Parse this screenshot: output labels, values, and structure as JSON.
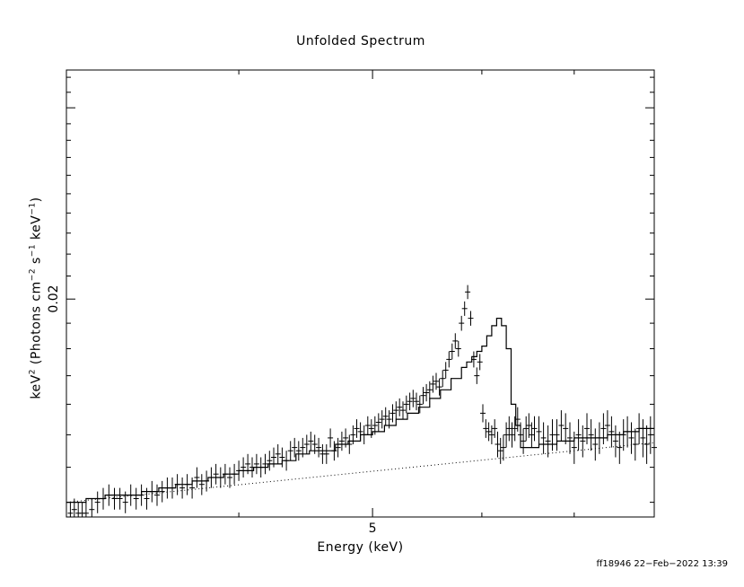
{
  "chart_data": {
    "type": "scatter",
    "title": "Unfolded Spectrum",
    "xlabel": "Energy (keV)",
    "ylabel": {
      "prefix": "keV",
      "sq": "2",
      "mid1": " (Photons cm",
      "cm_exp": "−2",
      "mid2": " s",
      "s_exp": "−1",
      "mid3": " keV",
      "kev_exp": "−1",
      "suffix": ")"
    },
    "x_scale": "log",
    "y_scale": "log",
    "xlim": [
      3.0,
      8.0
    ],
    "ylim": [
      0.0126,
      0.0325
    ],
    "x_tick_labels": [
      {
        "value": 5,
        "label": "5"
      }
    ],
    "y_tick_labels": [
      {
        "value": 0.02,
        "label": "0.02"
      }
    ],
    "grid": false,
    "series": [
      {
        "kind": "data_points_with_errors",
        "x": [
          3.02,
          3.04,
          3.06,
          3.08,
          3.1,
          3.13,
          3.16,
          3.19,
          3.22,
          3.25,
          3.28,
          3.31,
          3.34,
          3.37,
          3.4,
          3.43,
          3.46,
          3.49,
          3.52,
          3.55,
          3.58,
          3.61,
          3.64,
          3.67,
          3.7,
          3.73,
          3.76,
          3.79,
          3.82,
          3.85,
          3.88,
          3.91,
          3.94,
          3.97,
          4.0,
          4.03,
          4.06,
          4.09,
          4.12,
          4.15,
          4.18,
          4.21,
          4.24,
          4.27,
          4.3,
          4.33,
          4.36,
          4.39,
          4.42,
          4.45,
          4.48,
          4.51,
          4.54,
          4.57,
          4.6,
          4.63,
          4.66,
          4.69,
          4.72,
          4.75,
          4.78,
          4.81,
          4.84,
          4.87,
          4.9,
          4.93,
          4.96,
          4.99,
          5.02,
          5.05,
          5.08,
          5.11,
          5.14,
          5.17,
          5.2,
          5.23,
          5.26,
          5.29,
          5.32,
          5.35,
          5.38,
          5.41,
          5.44,
          5.47,
          5.5,
          5.53,
          5.56,
          5.59,
          5.62,
          5.65,
          5.68,
          5.71,
          5.74,
          5.77,
          5.8,
          5.83,
          5.86,
          5.89,
          5.92,
          5.95,
          5.98,
          6.01,
          6.04,
          6.07,
          6.1,
          6.13,
          6.16,
          6.19,
          6.22,
          6.25,
          6.28,
          6.31,
          6.34,
          6.37,
          6.4,
          6.43,
          6.46,
          6.49,
          6.52,
          6.55,
          6.6,
          6.65,
          6.7,
          6.75,
          6.8,
          6.85,
          6.9,
          6.95,
          7.0,
          7.05,
          7.1,
          7.15,
          7.2,
          7.25,
          7.3,
          7.35,
          7.4,
          7.45,
          7.5,
          7.55,
          7.6,
          7.65,
          7.7,
          7.75,
          7.8,
          7.85,
          7.9,
          7.95,
          8.0
        ],
        "y": [
          0.0127,
          0.0128,
          0.0127,
          0.0127,
          0.0127,
          0.0128,
          0.013,
          0.0131,
          0.0132,
          0.0131,
          0.0131,
          0.013,
          0.0132,
          0.0131,
          0.0132,
          0.0131,
          0.0133,
          0.0132,
          0.0133,
          0.0134,
          0.0134,
          0.0135,
          0.0134,
          0.0135,
          0.0134,
          0.0137,
          0.0135,
          0.0136,
          0.0137,
          0.0138,
          0.0137,
          0.0138,
          0.0137,
          0.0138,
          0.0139,
          0.014,
          0.0141,
          0.014,
          0.0141,
          0.014,
          0.0141,
          0.0142,
          0.0143,
          0.0144,
          0.0143,
          0.0142,
          0.0145,
          0.0146,
          0.0145,
          0.0146,
          0.0147,
          0.0148,
          0.0147,
          0.0146,
          0.0144,
          0.0144,
          0.0149,
          0.0145,
          0.0146,
          0.0148,
          0.0149,
          0.0147,
          0.015,
          0.0152,
          0.0151,
          0.015,
          0.0153,
          0.0152,
          0.0153,
          0.0154,
          0.0155,
          0.0156,
          0.0155,
          0.0157,
          0.0158,
          0.0159,
          0.0158,
          0.016,
          0.0161,
          0.0162,
          0.0161,
          0.016,
          0.0163,
          0.0164,
          0.0165,
          0.0167,
          0.0168,
          0.0166,
          0.0169,
          0.0172,
          0.0176,
          0.0179,
          0.0183,
          0.018,
          0.019,
          0.0196,
          0.0203,
          0.0192,
          0.0176,
          0.017,
          0.0175,
          0.0157,
          0.0152,
          0.0151,
          0.015,
          0.0152,
          0.0147,
          0.0145,
          0.0146,
          0.015,
          0.0152,
          0.015,
          0.0152,
          0.0155,
          0.015,
          0.0148,
          0.0152,
          0.0153,
          0.015,
          0.0152,
          0.0151,
          0.0149,
          0.0148,
          0.015,
          0.015,
          0.0153,
          0.0152,
          0.0149,
          0.0146,
          0.015,
          0.0148,
          0.0152,
          0.015,
          0.0147,
          0.0149,
          0.0152,
          0.0153,
          0.0151,
          0.0148,
          0.0146,
          0.015,
          0.0151,
          0.0149,
          0.0147,
          0.0152,
          0.0149,
          0.0147,
          0.015,
          0.0146
        ],
        "yerr": [
          0.0003,
          0.0003,
          0.0003,
          0.0003,
          0.0003,
          0.0003,
          0.0003,
          0.0003,
          0.0003,
          0.0003,
          0.0003,
          0.0003,
          0.0003,
          0.0003,
          0.0003,
          0.0003,
          0.0003,
          0.0003,
          0.0003,
          0.0003,
          0.0003,
          0.0003,
          0.0003,
          0.0003,
          0.0003,
          0.0003,
          0.0003,
          0.0003,
          0.0003,
          0.0003,
          0.0003,
          0.0003,
          0.0003,
          0.0003,
          0.0003,
          0.0003,
          0.0003,
          0.0003,
          0.0003,
          0.0003,
          0.0003,
          0.0003,
          0.0003,
          0.0003,
          0.0003,
          0.0003,
          0.0003,
          0.0003,
          0.0003,
          0.0003,
          0.0003,
          0.0003,
          0.0003,
          0.0003,
          0.0003,
          0.0003,
          0.0003,
          0.0003,
          0.0003,
          0.0003,
          0.0003,
          0.0003,
          0.0003,
          0.0003,
          0.0003,
          0.0003,
          0.0003,
          0.0003,
          0.0003,
          0.0003,
          0.0003,
          0.0003,
          0.0003,
          0.0003,
          0.0003,
          0.0003,
          0.0003,
          0.0003,
          0.0003,
          0.0003,
          0.0003,
          0.0003,
          0.0003,
          0.0003,
          0.0003,
          0.0003,
          0.0003,
          0.0003,
          0.0003,
          0.0003,
          0.0003,
          0.0003,
          0.0003,
          0.0003,
          0.0003,
          0.0003,
          0.0003,
          0.0003,
          0.0003,
          0.0003,
          0.0003,
          0.0003,
          0.0003,
          0.0003,
          0.0003,
          0.0003,
          0.0004,
          0.0004,
          0.0004,
          0.0004,
          0.0004,
          0.0004,
          0.0004,
          0.0004,
          0.0004,
          0.0004,
          0.0004,
          0.0004,
          0.0004,
          0.0004,
          0.0005,
          0.0005,
          0.0005,
          0.0005,
          0.0005,
          0.0005,
          0.0005,
          0.0005,
          0.0005,
          0.0005,
          0.0005,
          0.0005,
          0.0005,
          0.0005,
          0.0005,
          0.0005,
          0.0005,
          0.0005,
          0.0005,
          0.0005,
          0.0005,
          0.0005,
          0.0005,
          0.0005,
          0.0005,
          0.0006,
          0.0006,
          0.0006,
          0.0006
        ]
      },
      {
        "kind": "model_total_step",
        "x": [
          3.0,
          3.1,
          3.2,
          3.3,
          3.4,
          3.5,
          3.6,
          3.7,
          3.8,
          3.9,
          4.0,
          4.1,
          4.2,
          4.3,
          4.4,
          4.5,
          4.6,
          4.7,
          4.8,
          4.9,
          5.0,
          5.1,
          5.2,
          5.3,
          5.4,
          5.5,
          5.6,
          5.7,
          5.8,
          5.85,
          5.9,
          5.95,
          6.0,
          6.05,
          6.1,
          6.15,
          6.2,
          6.25,
          6.3,
          6.35,
          6.4,
          6.45,
          6.5,
          6.55,
          6.6,
          6.65,
          6.7,
          6.75,
          6.8,
          6.9,
          7.0,
          7.2,
          7.4,
          7.6,
          7.8,
          8.0
        ],
        "y": [
          0.013,
          0.0131,
          0.0132,
          0.0132,
          0.0133,
          0.0134,
          0.0135,
          0.0136,
          0.0137,
          0.0138,
          0.0139,
          0.014,
          0.0141,
          0.0142,
          0.0144,
          0.0145,
          0.0145,
          0.0147,
          0.0148,
          0.015,
          0.0151,
          0.0153,
          0.0155,
          0.0157,
          0.0159,
          0.0162,
          0.0165,
          0.0169,
          0.0173,
          0.0175,
          0.0177,
          0.0179,
          0.0181,
          0.0185,
          0.0189,
          0.0192,
          0.0189,
          0.018,
          0.016,
          0.0153,
          0.0146,
          0.0146,
          0.0146,
          0.0146,
          0.0147,
          0.0147,
          0.0147,
          0.0147,
          0.0148,
          0.0148,
          0.0149,
          0.0149,
          0.015,
          0.0151,
          0.0152,
          0.0153
        ]
      },
      {
        "kind": "model_continuum_dotted",
        "x": [
          3.0,
          8.0
        ],
        "y": [
          0.013,
          0.01475
        ]
      }
    ]
  },
  "footer": "ff18946 22−Feb−2022 13:39"
}
